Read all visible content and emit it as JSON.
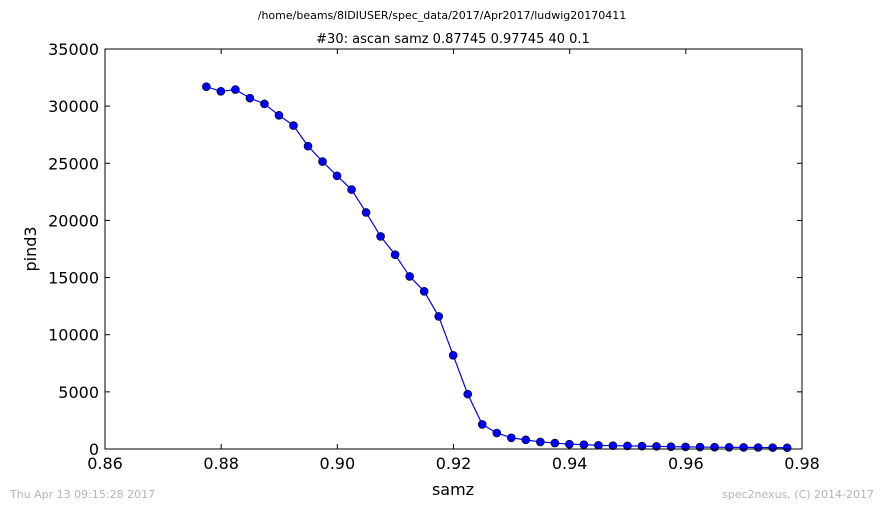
{
  "header": {
    "path": "/home/beams/8IDIUSER/spec_data/2017/Apr2017/ludwig20170411"
  },
  "footer": {
    "timestamp": "Thu Apr 13 09:15:28 2017",
    "credit": "spec2nexus, (C) 2014-2017"
  },
  "chart_data": {
    "type": "line",
    "title": "#30: ascan  samz 0.87745 0.97745  40 0.1",
    "xlabel": "samz",
    "ylabel": "pind3",
    "xlim": [
      0.86,
      0.98
    ],
    "ylim": [
      0,
      35000
    ],
    "xticks": [
      "0.86",
      "0.88",
      "0.90",
      "0.92",
      "0.94",
      "0.96",
      "0.98"
    ],
    "yticks": [
      "0",
      "5000",
      "10000",
      "15000",
      "20000",
      "25000",
      "30000",
      "35000"
    ],
    "grid": false,
    "legend": "none",
    "series": [
      {
        "color": "#0000ff",
        "marker": "circle",
        "x": [
          0.87745,
          0.87995,
          0.88245,
          0.88495,
          0.88745,
          0.88995,
          0.89245,
          0.89495,
          0.89745,
          0.89995,
          0.90245,
          0.90495,
          0.90745,
          0.90995,
          0.91245,
          0.91495,
          0.91745,
          0.91995,
          0.92245,
          0.92495,
          0.92745,
          0.92995,
          0.93245,
          0.93495,
          0.93745,
          0.93995,
          0.94245,
          0.94495,
          0.94745,
          0.94995,
          0.95245,
          0.95495,
          0.95745,
          0.95995,
          0.96245,
          0.96495,
          0.96745,
          0.96995,
          0.97245,
          0.97495,
          0.97745
        ],
        "y": [
          31700,
          31300,
          31450,
          30700,
          30200,
          29200,
          28300,
          26500,
          25150,
          23900,
          22700,
          20700,
          18600,
          17000,
          15100,
          13800,
          11600,
          8200,
          4800,
          2150,
          1400,
          980,
          800,
          620,
          520,
          420,
          380,
          320,
          290,
          270,
          250,
          230,
          200,
          185,
          170,
          160,
          150,
          140,
          130,
          120,
          110
        ]
      }
    ]
  }
}
